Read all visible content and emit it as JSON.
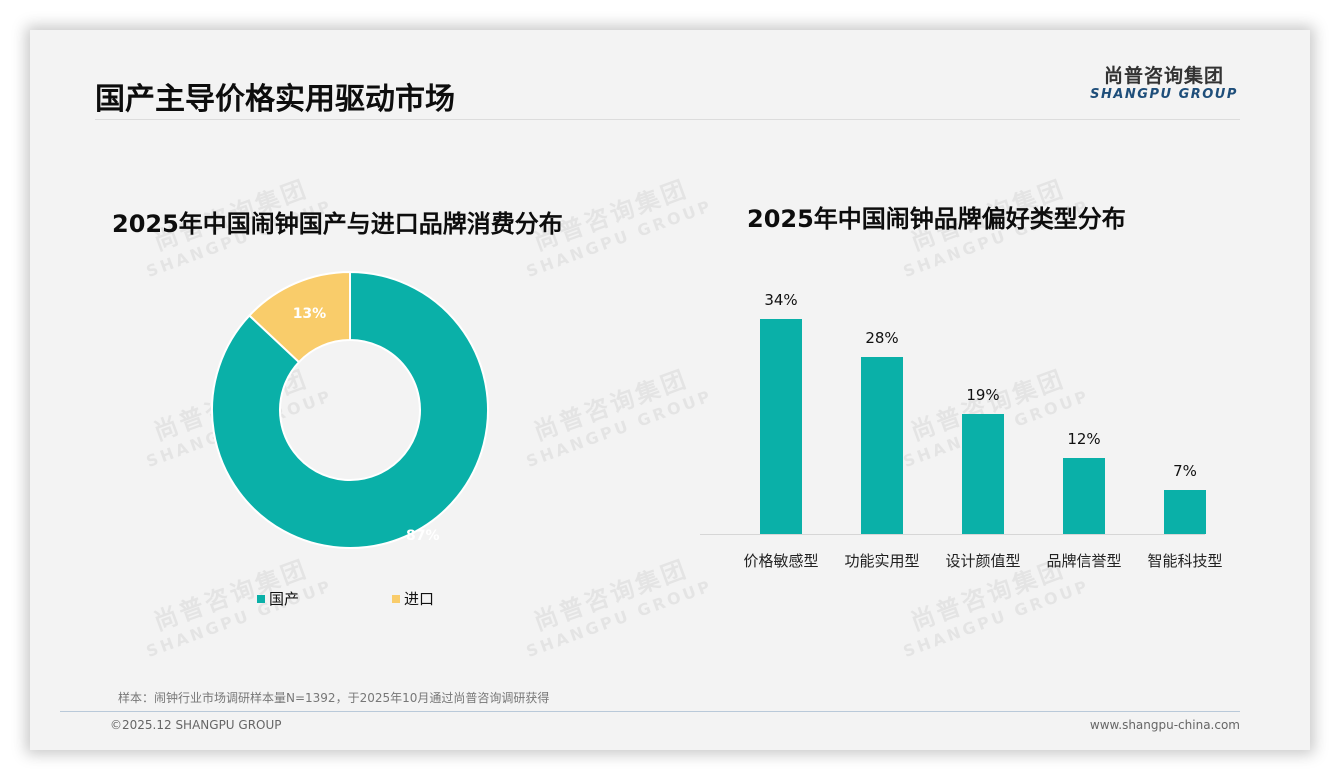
{
  "header": {
    "title": "国产主导价格实用驱动市场",
    "logo_cn": "尚普咨询集团",
    "logo_en": "SHANGPU GROUP"
  },
  "watermark": {
    "cn": "尚普咨询集团",
    "en": "SHANGPU GROUP"
  },
  "colors": {
    "teal": "#0AB0A8",
    "yellow": "#F9CC6A",
    "background": "#F3F3F3"
  },
  "left_chart": {
    "title": "2025年中国闹钟国产与进口品牌消费分布",
    "legend": [
      {
        "label": "国产",
        "color": "#0AB0A8"
      },
      {
        "label": "进口",
        "color": "#F9CC6A"
      }
    ],
    "labels": {
      "domestic": "87%",
      "imported": "13%"
    }
  },
  "right_chart": {
    "title": "2025年中国闹钟品牌偏好类型分布",
    "bars": [
      {
        "category": "价格敏感型",
        "value_label": "34%"
      },
      {
        "category": "功能实用型",
        "value_label": "28%"
      },
      {
        "category": "设计颜值型",
        "value_label": "19%"
      },
      {
        "category": "品牌信誉型",
        "value_label": "12%"
      },
      {
        "category": "智能科技型",
        "value_label": "7%"
      }
    ]
  },
  "chart_data": [
    {
      "type": "pie",
      "subtype": "donut",
      "title": "2025年中国闹钟国产与进口品牌消费分布",
      "categories": [
        "国产",
        "进口"
      ],
      "values": [
        87,
        13
      ],
      "unit": "%",
      "colors": [
        "#0AB0A8",
        "#F9CC6A"
      ],
      "legend_position": "bottom"
    },
    {
      "type": "bar",
      "title": "2025年中国闹钟品牌偏好类型分布",
      "categories": [
        "价格敏感型",
        "功能实用型",
        "设计颜值型",
        "品牌信誉型",
        "智能科技型"
      ],
      "values": [
        34,
        28,
        19,
        12,
        7
      ],
      "unit": "%",
      "xlabel": "",
      "ylabel": "",
      "ylim": [
        0,
        36
      ],
      "grid": false,
      "color": "#0AB0A8"
    }
  ],
  "footer": {
    "note": "样本：闹钟行业市场调研样本量N=1392，于2025年10月通过尚普咨询调研获得",
    "copyright": "©2025.12 SHANGPU GROUP",
    "website": "www.shangpu-china.com"
  }
}
